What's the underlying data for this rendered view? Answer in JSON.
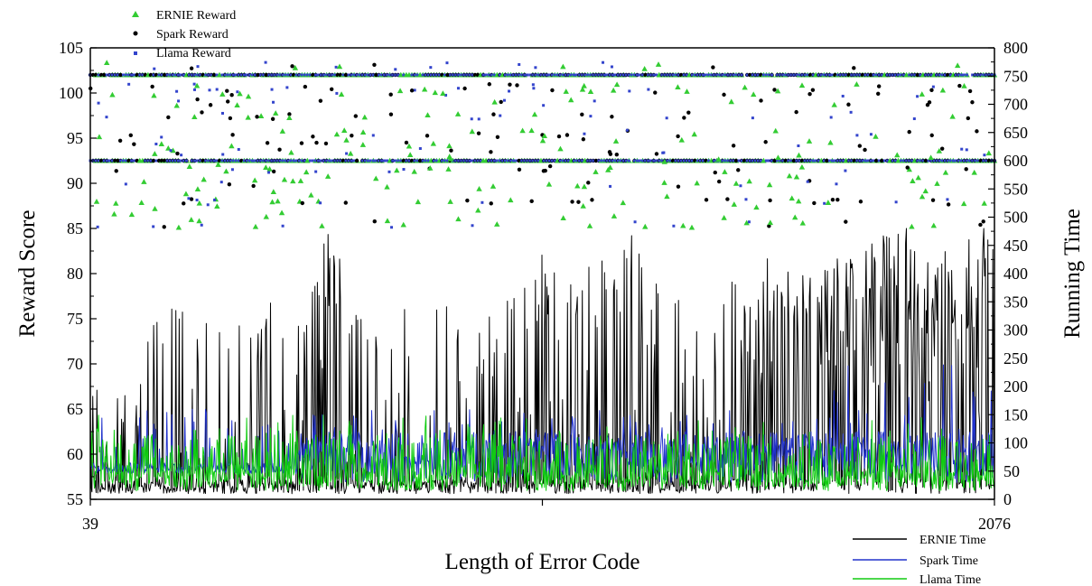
{
  "chart_data": {
    "type": "scatter+line",
    "xlabel": "Length of Error Code",
    "ylabel_left": "Reward Score",
    "ylabel_right": "Running Time",
    "xlim": [
      39,
      2076
    ],
    "x_ticks": [
      39,
      2076
    ],
    "ylim_left": [
      55,
      105
    ],
    "y_ticks_left": [
      55,
      60,
      65,
      70,
      75,
      80,
      85,
      90,
      95,
      100,
      105
    ],
    "ylim_right": [
      0,
      800
    ],
    "y_ticks_right": [
      0,
      50,
      100,
      150,
      200,
      250,
      300,
      350,
      400,
      450,
      500,
      550,
      600,
      650,
      700,
      750,
      800
    ],
    "legend_top": [
      "ERNIE Reward",
      "Spark Reward",
      "Llama Reward"
    ],
    "legend_bottom": [
      "ERNIE Time",
      "Spark Time",
      "Llama Time"
    ],
    "colors": {
      "ernie_reward": "#33cc33",
      "spark_reward": "#000000",
      "llama_reward": "#3344cc",
      "ernie_time": "#000000",
      "spark_time": "#2233cc",
      "llama_time": "#11cc11"
    },
    "reward_levels": {
      "main_levels": [
        102,
        92.5
      ],
      "scatter_levels": [
        103,
        100.6,
        100,
        99,
        97.5,
        95.5,
        94.5,
        93.5,
        91.5,
        90,
        88,
        85.5
      ]
    },
    "time_profile": {
      "n_points": 1100,
      "ernie_peaks": [
        {
          "x": 160,
          "y": 320
        },
        {
          "x": 290,
          "y": 320
        },
        {
          "x": 350,
          "y": 300
        },
        {
          "x": 400,
          "y": 285
        },
        {
          "x": 450,
          "y": 340
        },
        {
          "x": 520,
          "y": 350
        },
        {
          "x": 580,
          "y": 480
        },
        {
          "x": 620,
          "y": 375
        },
        {
          "x": 700,
          "y": 320
        },
        {
          "x": 750,
          "y": 320
        },
        {
          "x": 820,
          "y": 345
        },
        {
          "x": 930,
          "y": 310
        },
        {
          "x": 1020,
          "y": 380
        },
        {
          "x": 1060,
          "y": 440
        },
        {
          "x": 1100,
          "y": 360
        },
        {
          "x": 1150,
          "y": 410
        },
        {
          "x": 1220,
          "y": 450
        },
        {
          "x": 1280,
          "y": 480
        },
        {
          "x": 1340,
          "y": 390
        },
        {
          "x": 1400,
          "y": 430
        },
        {
          "x": 1450,
          "y": 340
        },
        {
          "x": 1500,
          "y": 420
        },
        {
          "x": 1560,
          "y": 430
        },
        {
          "x": 1620,
          "y": 415
        },
        {
          "x": 1680,
          "y": 420
        },
        {
          "x": 1740,
          "y": 440
        },
        {
          "x": 1800,
          "y": 470
        },
        {
          "x": 1860,
          "y": 480
        },
        {
          "x": 1920,
          "y": 445
        },
        {
          "x": 1980,
          "y": 455
        },
        {
          "x": 2040,
          "y": 480
        },
        {
          "x": 2070,
          "y": 470
        }
      ],
      "spark_baseline": 45,
      "spark_max": 245,
      "llama_baseline": 15,
      "llama_max": 155
    }
  }
}
